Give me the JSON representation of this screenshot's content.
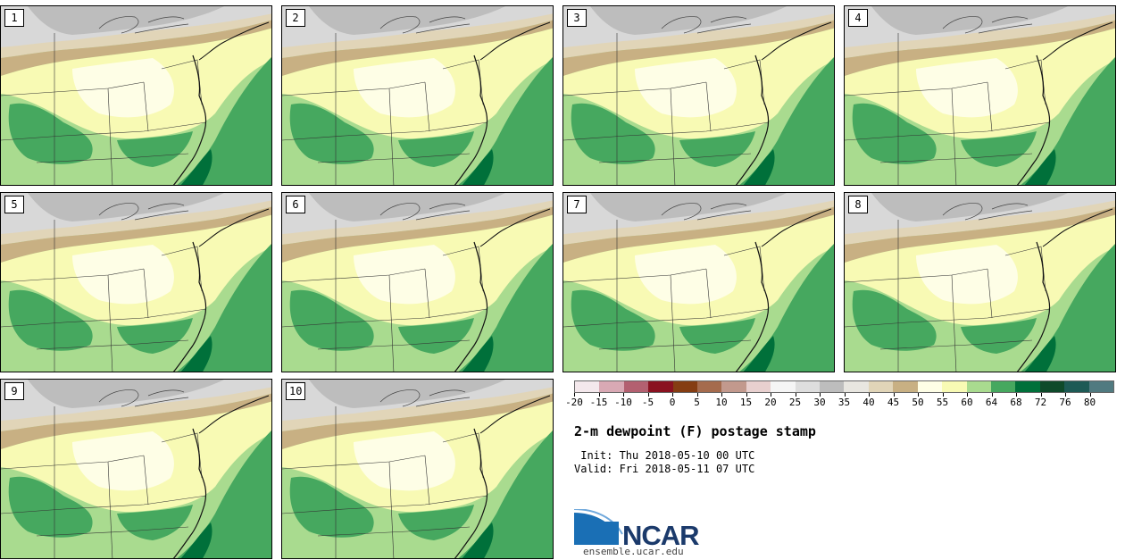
{
  "panels": [
    {
      "label": "1"
    },
    {
      "label": "2"
    },
    {
      "label": "3"
    },
    {
      "label": "4"
    },
    {
      "label": "5"
    },
    {
      "label": "6"
    },
    {
      "label": "7"
    },
    {
      "label": "8"
    },
    {
      "label": "9"
    },
    {
      "label": "10"
    }
  ],
  "colorbar": {
    "colors": [
      "#f4e8ec",
      "#d9a9b4",
      "#b36070",
      "#8a1220",
      "#853d12",
      "#a56b4d",
      "#c2998d",
      "#e8d0cf",
      "#f5f5f5",
      "#dedede",
      "#bdbdbd",
      "#e8e6e0",
      "#e1d5b8",
      "#c8b083",
      "#fefee6",
      "#f8fab4",
      "#a9db8f",
      "#46a85f",
      "#00703a",
      "#0e4a2a",
      "#1d5a55",
      "#507a80"
    ],
    "tick_labels": [
      "-20",
      "-15",
      "-10",
      "-5",
      "0",
      "5",
      "10",
      "15",
      "20",
      "25",
      "30",
      "35",
      "40",
      "45",
      "50",
      "55",
      "60",
      "64",
      "68",
      "72",
      "76",
      "80"
    ]
  },
  "title": "2-m dewpoint (F) postage stamp",
  "init": " Init: Thu 2018-05-10 00 UTC",
  "valid": "Valid: Fri 2018-05-11 07 UTC",
  "logo": {
    "text": "NCAR",
    "site": "ensemble.ucar.edu"
  }
}
